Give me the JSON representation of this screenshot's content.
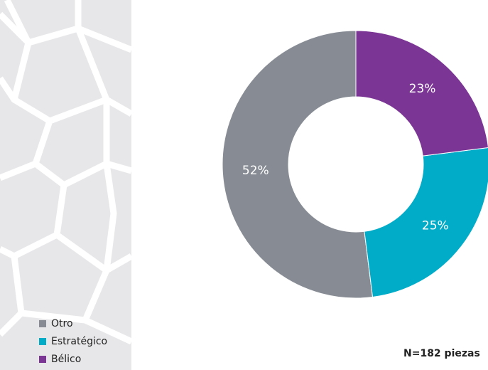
{
  "chart_data": {
    "type": "donut",
    "categories": [
      "Otro",
      "Estratégico",
      "Bélico"
    ],
    "values": [
      52,
      25,
      23
    ],
    "value_labels": [
      "52%",
      "25%",
      "23%"
    ],
    "colors": [
      "#878c94",
      "#00acc8",
      "#7b3595"
    ],
    "note": "N=182 piezas"
  }
}
